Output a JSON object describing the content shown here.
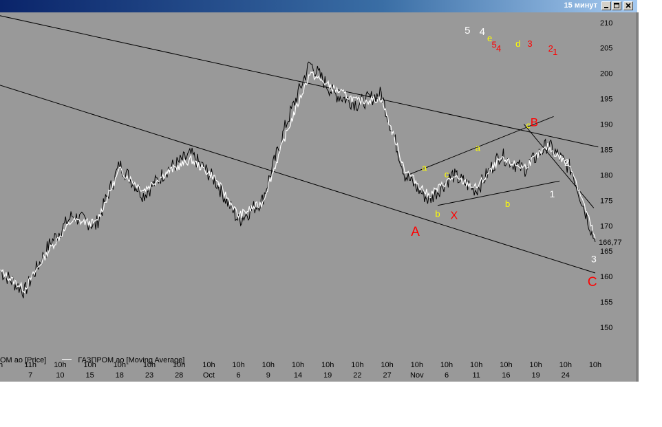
{
  "window": {
    "title": "15 минут"
  },
  "legend": {
    "price_label": "ОМ ао [Price]",
    "ma_label": "ГАЗПРОМ ао [Moving Average]"
  },
  "chart_data": {
    "type": "line",
    "ylim": [
      145,
      212
    ],
    "y_ticks": [
      150,
      155,
      160,
      165,
      170,
      175,
      180,
      185,
      190,
      195,
      200,
      205,
      210
    ],
    "last_price_label": "166,77",
    "x_ticks": [
      {
        "top": "h",
        "bottom": ""
      },
      {
        "top": "11h",
        "bottom": "7"
      },
      {
        "top": "10h",
        "bottom": "10"
      },
      {
        "top": "10h",
        "bottom": "15"
      },
      {
        "top": "10h",
        "bottom": "18"
      },
      {
        "top": "10h",
        "bottom": "23"
      },
      {
        "top": "10h",
        "bottom": "28"
      },
      {
        "top": "10h",
        "bottom": "Oct"
      },
      {
        "top": "10h",
        "bottom": "6"
      },
      {
        "top": "10h",
        "bottom": "9"
      },
      {
        "top": "10h",
        "bottom": "14"
      },
      {
        "top": "10h",
        "bottom": "19"
      },
      {
        "top": "10h",
        "bottom": "22"
      },
      {
        "top": "10h",
        "bottom": "27"
      },
      {
        "top": "10h",
        "bottom": "Nov"
      },
      {
        "top": "10h",
        "bottom": "6"
      },
      {
        "top": "10h",
        "bottom": "11"
      },
      {
        "top": "10h",
        "bottom": "16"
      },
      {
        "top": "10h",
        "bottom": "19"
      },
      {
        "top": "10h",
        "bottom": "24"
      },
      {
        "top": "10h",
        "bottom": ""
      }
    ],
    "series": [
      {
        "name": "ГАЗПРОМ ао [Price]",
        "x": [
          0,
          0.8,
          1.6,
          2.4,
          3.2,
          4,
          4.8,
          5.6,
          6.4,
          7.2,
          8,
          8.8,
          9.6,
          10.4,
          11.2,
          12,
          12.8,
          13.6,
          14.4,
          15.2,
          16,
          16.8,
          17.6,
          18.4,
          19.2,
          20
        ],
        "y": [
          161,
          157,
          166,
          172,
          170,
          182,
          176,
          181,
          184,
          179,
          171,
          175,
          190,
          202,
          196,
          194,
          196,
          180,
          175,
          180,
          177,
          184,
          181,
          186,
          181,
          166.8
        ]
      },
      {
        "name": "ГАЗПРОМ ао [Moving Average]",
        "x": [
          0,
          0.8,
          1.6,
          2.4,
          3.2,
          4,
          4.8,
          5.6,
          6.4,
          7.2,
          8,
          8.8,
          9.6,
          10.4,
          11.2,
          12,
          12.8,
          13.6,
          14.4,
          15.2,
          16,
          16.8,
          17.6,
          18.4,
          19.2,
          20
        ],
        "y": [
          161,
          157.5,
          165,
          171,
          170.5,
          181,
          177,
          180.5,
          183,
          179.5,
          172,
          174.5,
          188,
          200,
          197,
          194.5,
          195,
          181,
          176,
          179.5,
          177.5,
          183,
          181.5,
          185.5,
          181.5,
          167.5
        ]
      }
    ],
    "trendlines": [
      {
        "x": [
          -5.2,
          20.1
        ],
        "y": [
          218,
          185.5
        ]
      },
      {
        "x": [
          -0.2,
          20.0
        ],
        "y": [
          198,
          160.7
        ]
      },
      {
        "x": [
          14.7,
          18.8
        ],
        "y": [
          174,
          178.8
        ]
      },
      {
        "x": [
          13.7,
          18.6
        ],
        "y": [
          180,
          191.5
        ]
      },
      {
        "x": [
          17.6,
          19.95
        ],
        "y": [
          190,
          173.5
        ]
      }
    ],
    "annotations": [
      {
        "text": "5",
        "x": 15.7,
        "y": 207.8,
        "color": "#ffffff",
        "size": 15
      },
      {
        "text": "4",
        "x": 16.2,
        "y": 207.5,
        "color": "#ffffff",
        "size": 15
      },
      {
        "text": "e",
        "x": 16.45,
        "y": 206.3,
        "color": "#ffff00",
        "size": 13
      },
      {
        "text": "5",
        "x": 16.6,
        "y": 205.0,
        "color": "#ff0000",
        "size": 13
      },
      {
        "text": "4",
        "x": 16.75,
        "y": 204.3,
        "color": "#ff0000",
        "size": 13
      },
      {
        "text": "d",
        "x": 17.4,
        "y": 205.2,
        "color": "#ffff00",
        "size": 13
      },
      {
        "text": "3",
        "x": 17.8,
        "y": 205.2,
        "color": "#ff0000",
        "size": 13
      },
      {
        "text": "2",
        "x": 18.5,
        "y": 204.3,
        "color": "#ff0000",
        "size": 13
      },
      {
        "text": "1",
        "x": 18.65,
        "y": 203.6,
        "color": "#ff0000",
        "size": 13
      },
      {
        "text": "a",
        "x": 14.25,
        "y": 180.8,
        "color": "#ffff00",
        "size": 13
      },
      {
        "text": "c",
        "x": 15.0,
        "y": 179.5,
        "color": "#ffff00",
        "size": 13
      },
      {
        "text": "a",
        "x": 16.05,
        "y": 184.7,
        "color": "#ffff00",
        "size": 13
      },
      {
        "text": "c",
        "x": 17.75,
        "y": 189.2,
        "color": "#ffff00",
        "size": 13
      },
      {
        "text": "b",
        "x": 14.7,
        "y": 171.7,
        "color": "#ffff00",
        "size": 13
      },
      {
        "text": "b",
        "x": 17.05,
        "y": 173.7,
        "color": "#ffff00",
        "size": 13
      },
      {
        "text": "B",
        "x": 17.95,
        "y": 189.6,
        "color": "#ff0000",
        "size": 17
      },
      {
        "text": "X",
        "x": 15.25,
        "y": 171.3,
        "color": "#ff0000",
        "size": 16
      },
      {
        "text": "A",
        "x": 13.95,
        "y": 168.0,
        "color": "#ff0000",
        "size": 19
      },
      {
        "text": "C",
        "x": 19.9,
        "y": 158.1,
        "color": "#ff0000",
        "size": 19
      },
      {
        "text": "1",
        "x": 18.55,
        "y": 175.6,
        "color": "#ffffff",
        "size": 14
      },
      {
        "text": "2",
        "x": 19.05,
        "y": 181.8,
        "color": "#ffffff",
        "size": 14
      },
      {
        "text": "3",
        "x": 19.95,
        "y": 162.8,
        "color": "#ffffff",
        "size": 14
      }
    ],
    "colors": {
      "background": "#999999",
      "price": "#000000",
      "ma": "#ffffff",
      "trend": "#000000"
    }
  }
}
